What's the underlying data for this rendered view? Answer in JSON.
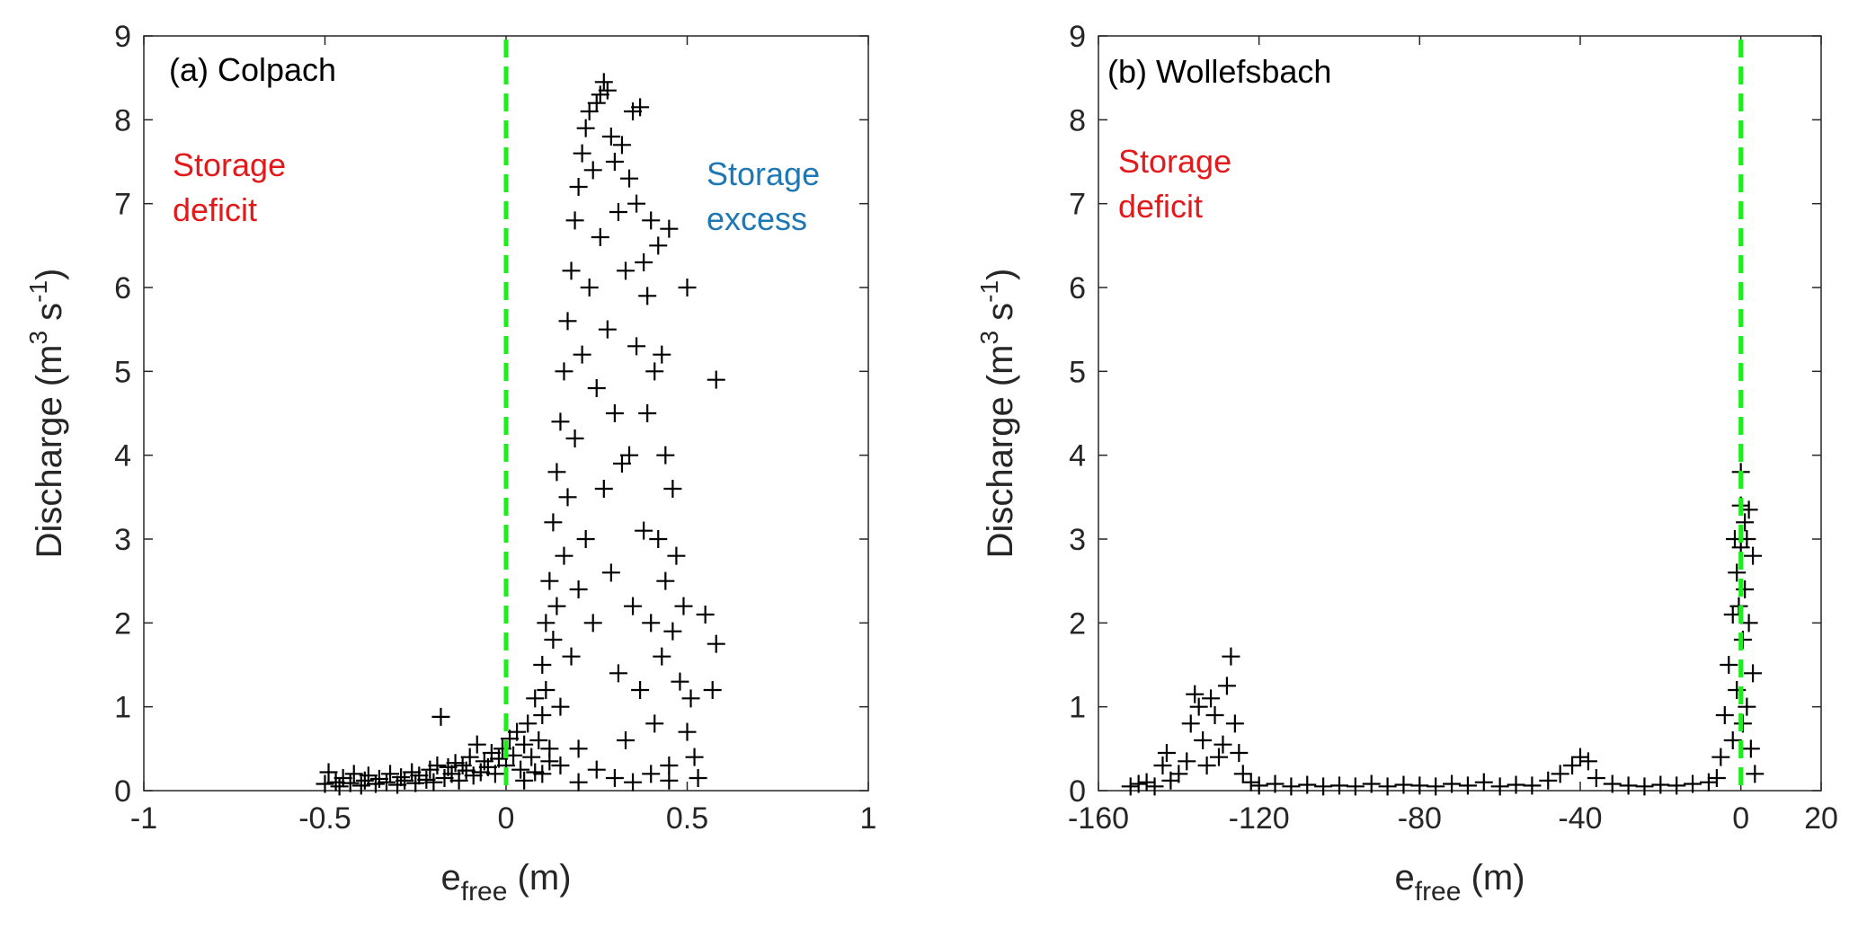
{
  "chart_data": [
    {
      "type": "scatter",
      "panel_title": "(a) Colpach",
      "xlabel_main": "e",
      "xlabel_sub": "free",
      "xlabel_unit": " (m)",
      "ylabel_pre": "Discharge (m",
      "ylabel_sup1": "3",
      "ylabel_mid": " s",
      "ylabel_sup2": "-1",
      "ylabel_post": ")",
      "xlim": [
        -1,
        1
      ],
      "ylim": [
        0,
        9
      ],
      "xticks": [
        -1,
        -0.5,
        0,
        0.5,
        1
      ],
      "xtick_labels": [
        "-1",
        "-0.5",
        "0",
        "0.5",
        "1"
      ],
      "yticks": [
        0,
        1,
        2,
        3,
        4,
        5,
        6,
        7,
        8,
        9
      ],
      "ytick_labels": [
        "0",
        "1",
        "2",
        "3",
        "4",
        "5",
        "6",
        "7",
        "8",
        "9"
      ],
      "reference_line": {
        "x": 0,
        "color": "#1aef1a",
        "style": "dashed"
      },
      "grid": false,
      "marker": "+",
      "marker_color": "#000000",
      "annotations": [
        {
          "text": [
            "Storage",
            "deficit"
          ],
          "color": "#e31a1c",
          "x": -0.9,
          "y": 7.4
        },
        {
          "text": [
            "Storage",
            "excess"
          ],
          "color": "#1f78b4",
          "x": 0.55,
          "y": 7.3
        }
      ],
      "points": [
        [
          -0.5,
          0.08
        ],
        [
          -0.49,
          0.22
        ],
        [
          -0.47,
          0.1
        ],
        [
          -0.46,
          0.05
        ],
        [
          -0.45,
          0.15
        ],
        [
          -0.43,
          0.09
        ],
        [
          -0.42,
          0.2
        ],
        [
          -0.4,
          0.06
        ],
        [
          -0.39,
          0.12
        ],
        [
          -0.38,
          0.18
        ],
        [
          -0.36,
          0.08
        ],
        [
          -0.35,
          0.14
        ],
        [
          -0.33,
          0.1
        ],
        [
          -0.32,
          0.2
        ],
        [
          -0.3,
          0.07
        ],
        [
          -0.29,
          0.16
        ],
        [
          -0.28,
          0.12
        ],
        [
          -0.26,
          0.22
        ],
        [
          -0.25,
          0.09
        ],
        [
          -0.24,
          0.18
        ],
        [
          -0.22,
          0.13
        ],
        [
          -0.21,
          0.25
        ],
        [
          -0.2,
          0.1
        ],
        [
          -0.19,
          0.3
        ],
        [
          -0.18,
          0.88
        ],
        [
          -0.17,
          0.15
        ],
        [
          -0.16,
          0.28
        ],
        [
          -0.15,
          0.2
        ],
        [
          -0.14,
          0.33
        ],
        [
          -0.13,
          0.12
        ],
        [
          -0.12,
          0.3
        ],
        [
          -0.11,
          0.24
        ],
        [
          -0.1,
          0.4
        ],
        [
          -0.09,
          0.18
        ],
        [
          -0.08,
          0.55
        ],
        [
          -0.07,
          0.22
        ],
        [
          -0.06,
          0.35
        ],
        [
          -0.05,
          0.28
        ],
        [
          -0.04,
          0.45
        ],
        [
          -0.03,
          0.2
        ],
        [
          -0.02,
          0.38
        ],
        [
          -0.01,
          0.5
        ],
        [
          0.0,
          0.3
        ],
        [
          0.01,
          0.62
        ],
        [
          0.02,
          0.42
        ],
        [
          0.03,
          0.7
        ],
        [
          0.04,
          0.25
        ],
        [
          0.05,
          0.55
        ],
        [
          0.06,
          0.8
        ],
        [
          0.07,
          0.4
        ],
        [
          0.08,
          1.1
        ],
        [
          0.09,
          0.6
        ],
        [
          0.1,
          1.5
        ],
        [
          0.1,
          0.9
        ],
        [
          0.11,
          2.0
        ],
        [
          0.11,
          1.2
        ],
        [
          0.12,
          2.5
        ],
        [
          0.12,
          0.5
        ],
        [
          0.13,
          3.2
        ],
        [
          0.13,
          1.8
        ],
        [
          0.14,
          3.8
        ],
        [
          0.14,
          2.2
        ],
        [
          0.15,
          4.4
        ],
        [
          0.15,
          1.0
        ],
        [
          0.16,
          5.0
        ],
        [
          0.16,
          2.8
        ],
        [
          0.17,
          5.6
        ],
        [
          0.17,
          3.5
        ],
        [
          0.18,
          6.2
        ],
        [
          0.18,
          1.6
        ],
        [
          0.19,
          6.8
        ],
        [
          0.19,
          4.2
        ],
        [
          0.2,
          7.2
        ],
        [
          0.2,
          2.4
        ],
        [
          0.21,
          7.6
        ],
        [
          0.21,
          5.2
        ],
        [
          0.22,
          7.9
        ],
        [
          0.22,
          3.0
        ],
        [
          0.23,
          8.1
        ],
        [
          0.23,
          6.0
        ],
        [
          0.24,
          7.4
        ],
        [
          0.24,
          2.0
        ],
        [
          0.25,
          8.2
        ],
        [
          0.25,
          4.8
        ],
        [
          0.26,
          8.3
        ],
        [
          0.26,
          6.6
        ],
        [
          0.27,
          8.45
        ],
        [
          0.27,
          3.6
        ],
        [
          0.28,
          8.35
        ],
        [
          0.28,
          5.5
        ],
        [
          0.29,
          7.8
        ],
        [
          0.29,
          2.6
        ],
        [
          0.3,
          7.5
        ],
        [
          0.3,
          4.5
        ],
        [
          0.31,
          6.9
        ],
        [
          0.31,
          1.4
        ],
        [
          0.32,
          7.7
        ],
        [
          0.32,
          3.9
        ],
        [
          0.33,
          6.2
        ],
        [
          0.33,
          0.6
        ],
        [
          0.34,
          7.3
        ],
        [
          0.34,
          4.0
        ],
        [
          0.35,
          8.1
        ],
        [
          0.35,
          2.2
        ],
        [
          0.36,
          7.0
        ],
        [
          0.36,
          5.3
        ],
        [
          0.37,
          8.15
        ],
        [
          0.37,
          1.2
        ],
        [
          0.38,
          6.3
        ],
        [
          0.38,
          3.1
        ],
        [
          0.39,
          5.9
        ],
        [
          0.39,
          4.5
        ],
        [
          0.4,
          6.8
        ],
        [
          0.4,
          2.0
        ],
        [
          0.41,
          5.0
        ],
        [
          0.41,
          0.8
        ],
        [
          0.42,
          6.5
        ],
        [
          0.42,
          3.0
        ],
        [
          0.43,
          5.2
        ],
        [
          0.43,
          1.6
        ],
        [
          0.44,
          4.0
        ],
        [
          0.44,
          2.5
        ],
        [
          0.45,
          6.7
        ],
        [
          0.45,
          0.3
        ],
        [
          0.46,
          3.6
        ],
        [
          0.46,
          1.9
        ],
        [
          0.47,
          2.8
        ],
        [
          0.48,
          1.3
        ],
        [
          0.49,
          2.2
        ],
        [
          0.5,
          6.0
        ],
        [
          0.5,
          0.7
        ],
        [
          0.51,
          1.1
        ],
        [
          0.52,
          0.4
        ],
        [
          0.53,
          0.15
        ],
        [
          0.55,
          2.1
        ],
        [
          0.57,
          1.2
        ],
        [
          0.58,
          4.9
        ],
        [
          0.58,
          1.75
        ],
        [
          0.05,
          0.12
        ],
        [
          0.1,
          0.2
        ],
        [
          0.15,
          0.3
        ],
        [
          0.2,
          0.1
        ],
        [
          0.25,
          0.25
        ],
        [
          0.3,
          0.15
        ],
        [
          0.35,
          0.1
        ],
        [
          0.4,
          0.2
        ],
        [
          0.45,
          0.12
        ],
        [
          0.2,
          0.5
        ],
        [
          0.12,
          0.35
        ],
        [
          0.08,
          0.22
        ]
      ]
    },
    {
      "type": "scatter",
      "panel_title": "(b) Wollefsbach",
      "xlabel_main": "e",
      "xlabel_sub": "free",
      "xlabel_unit": " (m)",
      "ylabel_pre": "Discharge (m",
      "ylabel_sup1": "3",
      "ylabel_mid": " s",
      "ylabel_sup2": "-1",
      "ylabel_post": ")",
      "xlim": [
        -160,
        20
      ],
      "ylim": [
        0,
        9
      ],
      "xticks": [
        -160,
        -120,
        -80,
        -40,
        0,
        20
      ],
      "xtick_labels": [
        "-160",
        "-120",
        "-80",
        "-40",
        "0",
        "20"
      ],
      "yticks": [
        0,
        1,
        2,
        3,
        4,
        5,
        6,
        7,
        8,
        9
      ],
      "ytick_labels": [
        "0",
        "1",
        "2",
        "3",
        "4",
        "5",
        "6",
        "7",
        "8",
        "9"
      ],
      "reference_line": {
        "x": 0,
        "color": "#1aef1a",
        "style": "dashed"
      },
      "grid": false,
      "marker": "+",
      "marker_color": "#000000",
      "annotations": [
        {
          "text": [
            "Storage",
            "deficit"
          ],
          "color": "#e31a1c",
          "x": -150,
          "y": 7.4
        }
      ],
      "points": [
        [
          -152,
          0.05
        ],
        [
          -150,
          0.08
        ],
        [
          -148,
          0.1
        ],
        [
          -146,
          0.05
        ],
        [
          -144,
          0.3
        ],
        [
          -143,
          0.45
        ],
        [
          -142,
          0.12
        ],
        [
          -140,
          0.2
        ],
        [
          -138,
          0.35
        ],
        [
          -137,
          0.8
        ],
        [
          -136,
          1.15
        ],
        [
          -135,
          1.0
        ],
        [
          -134,
          0.6
        ],
        [
          -133,
          0.3
        ],
        [
          -132,
          1.1
        ],
        [
          -131,
          0.9
        ],
        [
          -130,
          0.4
        ],
        [
          -129,
          0.55
        ],
        [
          -128,
          1.25
        ],
        [
          -127,
          1.6
        ],
        [
          -126,
          0.8
        ],
        [
          -125,
          0.45
        ],
        [
          -124,
          0.2
        ],
        [
          -122,
          0.1
        ],
        [
          -120,
          0.06
        ],
        [
          -116,
          0.08
        ],
        [
          -112,
          0.05
        ],
        [
          -108,
          0.07
        ],
        [
          -104,
          0.05
        ],
        [
          -100,
          0.06
        ],
        [
          -96,
          0.05
        ],
        [
          -92,
          0.08
        ],
        [
          -88,
          0.05
        ],
        [
          -84,
          0.07
        ],
        [
          -80,
          0.06
        ],
        [
          -76,
          0.05
        ],
        [
          -72,
          0.08
        ],
        [
          -68,
          0.06
        ],
        [
          -64,
          0.1
        ],
        [
          -60,
          0.05
        ],
        [
          -56,
          0.07
        ],
        [
          -52,
          0.06
        ],
        [
          -48,
          0.12
        ],
        [
          -45,
          0.2
        ],
        [
          -42,
          0.3
        ],
        [
          -40,
          0.4
        ],
        [
          -38,
          0.35
        ],
        [
          -36,
          0.15
        ],
        [
          -32,
          0.08
        ],
        [
          -28,
          0.06
        ],
        [
          -24,
          0.05
        ],
        [
          -20,
          0.07
        ],
        [
          -16,
          0.06
        ],
        [
          -12,
          0.08
        ],
        [
          -8,
          0.1
        ],
        [
          -6,
          0.15
        ],
        [
          -5,
          0.4
        ],
        [
          -4,
          0.9
        ],
        [
          -3,
          1.5
        ],
        [
          -2,
          2.1
        ],
        [
          -2,
          0.6
        ],
        [
          -1,
          2.6
        ],
        [
          -1,
          1.2
        ],
        [
          0,
          3.4
        ],
        [
          0,
          2.9
        ],
        [
          0,
          3.8
        ],
        [
          0.5,
          1.8
        ],
        [
          1,
          3.2
        ],
        [
          1,
          2.4
        ],
        [
          1.5,
          1.0
        ],
        [
          2,
          3.35
        ],
        [
          2,
          2.0
        ],
        [
          2.5,
          0.5
        ],
        [
          3,
          2.8
        ],
        [
          3,
          1.4
        ],
        [
          3.5,
          0.2
        ],
        [
          -1.5,
          3.0
        ],
        [
          -0.5,
          2.2
        ],
        [
          0.5,
          0.8
        ],
        [
          1.5,
          3.0
        ]
      ]
    }
  ]
}
